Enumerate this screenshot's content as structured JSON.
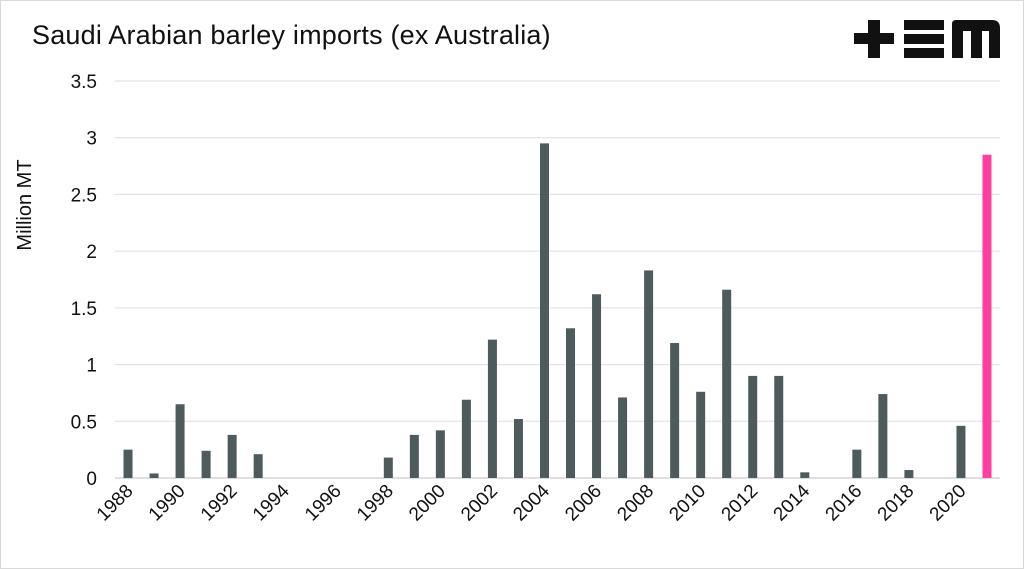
{
  "chart_data": {
    "type": "bar",
    "title": "Saudi Arabian barley imports (ex Australia)",
    "ylabel": "Million MT",
    "xlabel": "",
    "ylim": [
      0,
      3.5
    ],
    "yticks": [
      "0",
      "0.5",
      "1",
      "1.5",
      "2",
      "2.5",
      "3",
      "3.5"
    ],
    "grid": true,
    "categories": [
      "1988",
      "1989",
      "1990",
      "1991",
      "1992",
      "1993",
      "1994",
      "1995",
      "1996",
      "1997",
      "1998",
      "1999",
      "2000",
      "2001",
      "2002",
      "2003",
      "2004",
      "2005",
      "2006",
      "2007",
      "2008",
      "2009",
      "2010",
      "2011",
      "2012",
      "2013",
      "2014",
      "2015",
      "2016",
      "2017",
      "2018",
      "2019",
      "2020",
      "2021"
    ],
    "tick_labels": [
      "1988",
      "1990",
      "1992",
      "1994",
      "1996",
      "1998",
      "2000",
      "2002",
      "2004",
      "2006",
      "2008",
      "2010",
      "2012",
      "2014",
      "2016",
      "2018",
      "2020"
    ],
    "values": [
      0.25,
      0.04,
      0.65,
      0.24,
      0.38,
      0.21,
      0,
      0,
      0,
      0,
      0.18,
      0.38,
      0.42,
      0.69,
      1.22,
      0.52,
      2.95,
      1.32,
      1.62,
      0.71,
      1.83,
      1.19,
      0.76,
      1.66,
      0.9,
      0.9,
      0.05,
      0,
      0.25,
      0.74,
      0.07,
      0,
      0.46,
      2.85
    ],
    "bar_color": "#4d5b5d",
    "highlight_color": "#ff3fa0",
    "highlight_index": 33
  },
  "logo": {
    "name": "tem-logo",
    "text": "TEM"
  }
}
